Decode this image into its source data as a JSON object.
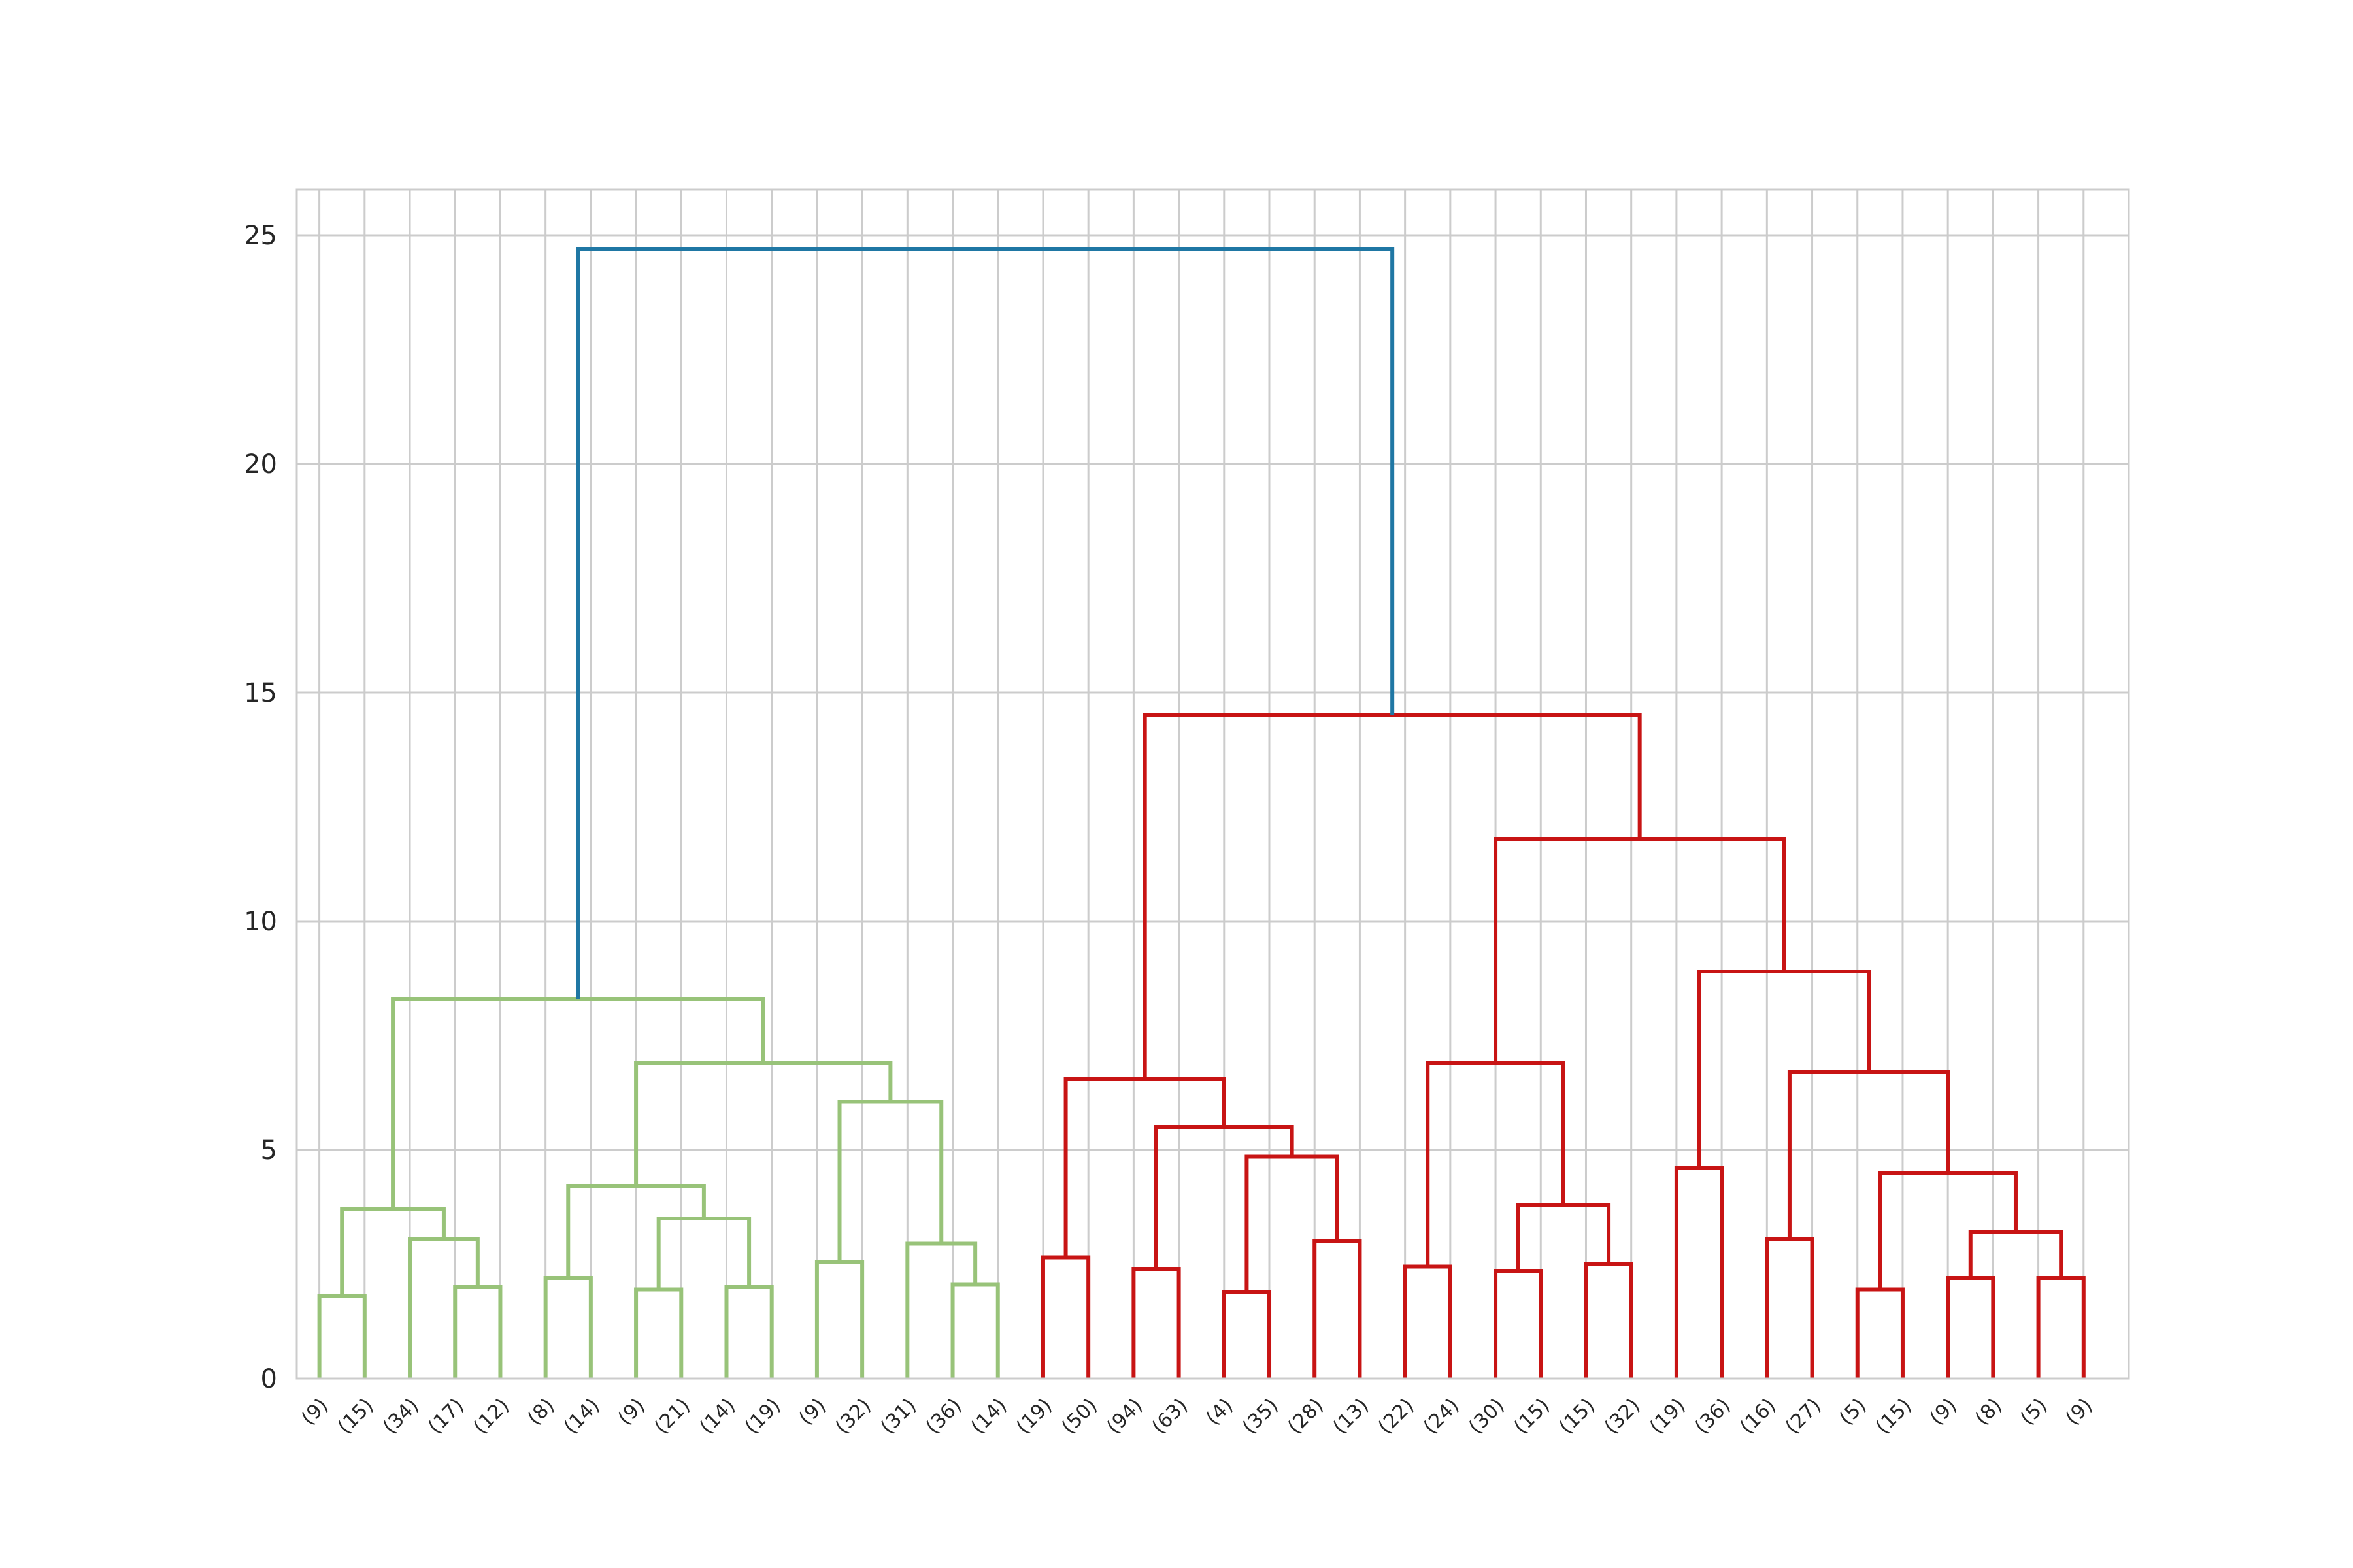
{
  "chart_data": {
    "type": "dendrogram",
    "title": "",
    "xlabel": "",
    "ylabel": "",
    "ylim": [
      0,
      26
    ],
    "yticks": [
      0,
      5,
      10,
      15,
      20,
      25
    ],
    "grid": true,
    "colors": {
      "cluster_1": "#98c379",
      "cluster_2": "#c81414",
      "above_threshold": "#1f77a4",
      "grid": "#cccccc"
    },
    "leaves": [
      "(9)",
      "(15)",
      "(34)",
      "(17)",
      "(12)",
      "(8)",
      "(14)",
      "(9)",
      "(21)",
      "(14)",
      "(19)",
      "(9)",
      "(32)",
      "(31)",
      "(36)",
      "(14)",
      "(19)",
      "(50)",
      "(94)",
      "(63)",
      "(4)",
      "(35)",
      "(28)",
      "(13)",
      "(22)",
      "(24)",
      "(30)",
      "(15)",
      "(15)",
      "(32)",
      "(19)",
      "(36)",
      "(16)",
      "(27)",
      "(5)",
      "(15)",
      "(9)",
      "(8)",
      "(5)",
      "(9)"
    ],
    "links": [
      {
        "left": 0,
        "right": 1,
        "height": 1.8,
        "color": "cluster_1"
      },
      {
        "left": 3,
        "right": 4,
        "height": 2.0,
        "color": "cluster_1"
      },
      {
        "left": 2,
        "right": "L2",
        "height": 3.05,
        "color": "cluster_1"
      },
      {
        "left": "L1",
        "right": "L3",
        "height": 3.7,
        "color": "cluster_1"
      },
      {
        "left": 7,
        "right": 8,
        "height": 1.95,
        "color": "cluster_1"
      },
      {
        "left": 9,
        "right": 10,
        "height": 2.0,
        "color": "cluster_1"
      },
      {
        "left": "L5",
        "right": "L6",
        "height": 3.5,
        "color": "cluster_1"
      },
      {
        "left": 5,
        "right": 6,
        "height": 2.2,
        "color": "cluster_1"
      },
      {
        "left": "L8",
        "right": "L7",
        "height": 4.2,
        "color": "cluster_1"
      },
      {
        "left": 11,
        "right": 12,
        "height": 2.55,
        "color": "cluster_1"
      },
      {
        "left": 14,
        "right": 15,
        "height": 2.05,
        "color": "cluster_1"
      },
      {
        "left": 13,
        "right": "L11",
        "height": 2.95,
        "color": "cluster_1"
      },
      {
        "left": "L10",
        "right": "L12",
        "height": 6.05,
        "color": "cluster_1"
      },
      {
        "left": "L9",
        "right": "L13",
        "height": 6.9,
        "color": "cluster_1"
      },
      {
        "left": "L4",
        "right": "L14",
        "height": 8.3,
        "color": "cluster_1"
      },
      {
        "left": 16,
        "right": 17,
        "height": 2.65,
        "color": "cluster_2"
      },
      {
        "left": 18,
        "right": 19,
        "height": 2.4,
        "color": "cluster_2"
      },
      {
        "left": 20,
        "right": 21,
        "height": 1.9,
        "color": "cluster_2"
      },
      {
        "left": 22,
        "right": 23,
        "height": 3.0,
        "color": "cluster_2"
      },
      {
        "left": "L18",
        "right": "L19",
        "height": 4.85,
        "color": "cluster_2"
      },
      {
        "left": "L17",
        "right": "L20",
        "height": 5.5,
        "color": "cluster_2"
      },
      {
        "left": "L16",
        "right": "L21",
        "height": 6.55,
        "color": "cluster_2"
      },
      {
        "left": 24,
        "right": 25,
        "height": 2.45,
        "color": "cluster_2"
      },
      {
        "left": 26,
        "right": 27,
        "height": 2.35,
        "color": "cluster_2"
      },
      {
        "left": 28,
        "right": 29,
        "height": 2.5,
        "color": "cluster_2"
      },
      {
        "left": "L24",
        "right": "L25",
        "height": 3.8,
        "color": "cluster_2"
      },
      {
        "left": "L23",
        "right": "L26",
        "height": 6.9,
        "color": "cluster_2"
      },
      {
        "left": 30,
        "right": 31,
        "height": 4.6,
        "color": "cluster_2"
      },
      {
        "left": 32,
        "right": 33,
        "height": 3.05,
        "color": "cluster_2"
      },
      {
        "left": 34,
        "right": 35,
        "height": 1.95,
        "color": "cluster_2"
      },
      {
        "left": 36,
        "right": 37,
        "height": 2.2,
        "color": "cluster_2"
      },
      {
        "left": 38,
        "right": 39,
        "height": 2.2,
        "color": "cluster_2"
      },
      {
        "left": "L31",
        "right": "L32",
        "height": 3.2,
        "color": "cluster_2"
      },
      {
        "left": "L30",
        "right": "L33",
        "height": 4.5,
        "color": "cluster_2"
      },
      {
        "left": "L29",
        "right": "L34",
        "height": 6.7,
        "color": "cluster_2"
      },
      {
        "left": "L28",
        "right": "L35",
        "height": 8.9,
        "color": "cluster_2"
      },
      {
        "left": "L27",
        "right": "L36",
        "height": 11.8,
        "color": "cluster_2"
      },
      {
        "left": "L22",
        "right": "L37",
        "height": 14.5,
        "color": "cluster_2"
      },
      {
        "left": "L15",
        "right": "L38",
        "height": 24.7,
        "color": "above_threshold"
      }
    ]
  }
}
